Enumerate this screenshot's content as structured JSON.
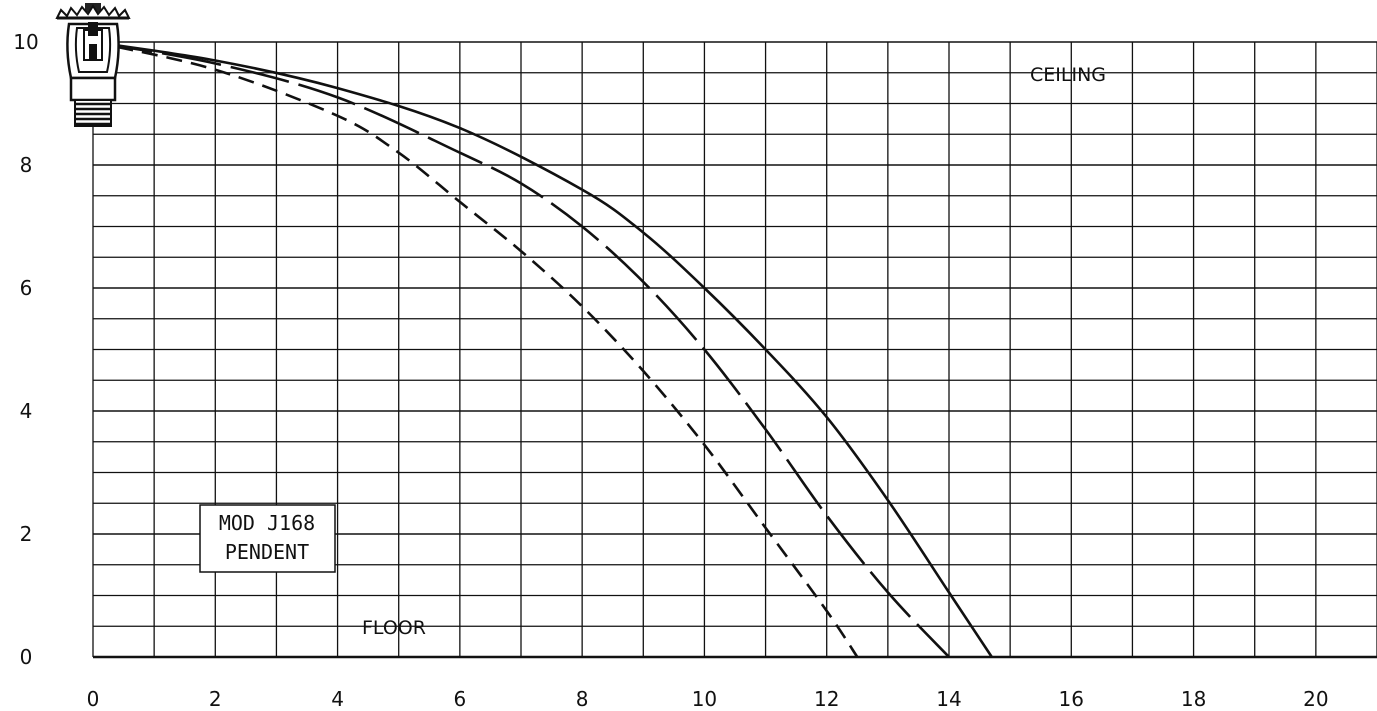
{
  "chart_data": {
    "type": "line",
    "title": "",
    "xlabel": "",
    "ylabel": "",
    "xlim": [
      0,
      21
    ],
    "ylim": [
      0,
      10
    ],
    "x_ticks": [
      "0",
      "2",
      "4",
      "6",
      "8",
      "10",
      "12",
      "14",
      "16",
      "18",
      "20"
    ],
    "y_ticks": [
      "0",
      "2",
      "4",
      "6",
      "8",
      "10"
    ],
    "grid": true,
    "annotations": {
      "ceiling": "CEILING",
      "floor": "FLOOR",
      "model_line1": "MOD J168",
      "model_line2": "PENDENT"
    },
    "sprinkler_icon": "pendent-sprinkler-icon",
    "series": [
      {
        "style": "dashed",
        "x": [
          0,
          2,
          4,
          5,
          6,
          7,
          8,
          9,
          10,
          11,
          12,
          12.5
        ],
        "y": [
          10,
          9.55,
          8.8,
          8.2,
          7.4,
          6.6,
          5.7,
          4.65,
          3.45,
          2.1,
          0.75,
          0
        ]
      },
      {
        "style": "dash-solid",
        "x": [
          0,
          2,
          4,
          6,
          7,
          8,
          9,
          10,
          11,
          12,
          13,
          14
        ],
        "y": [
          10,
          9.65,
          9.1,
          8.2,
          7.7,
          7.0,
          6.1,
          5.0,
          3.7,
          2.3,
          1.05,
          0
        ]
      },
      {
        "style": "solid",
        "x": [
          0,
          2,
          4,
          6,
          8,
          9,
          10,
          11,
          12,
          13,
          14,
          14.7
        ],
        "y": [
          10,
          9.7,
          9.25,
          8.6,
          7.6,
          6.9,
          6.0,
          5.0,
          3.9,
          2.55,
          1.05,
          0
        ]
      }
    ]
  }
}
